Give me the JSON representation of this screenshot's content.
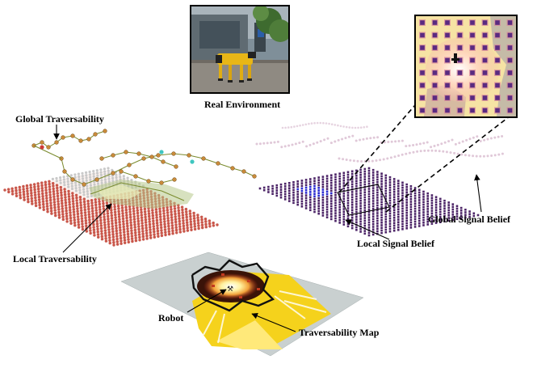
{
  "labels": {
    "real_environment": "Real Environment",
    "global_traversability": "Global Traversability",
    "local_traversability": "Local Traversability",
    "global_signal_belief": "Global Signal Belief",
    "local_signal_belief": "Local Signal Belief",
    "robot": "Robot",
    "traversability_map": "Traversability Map"
  },
  "colors": {
    "local_traversability_nodes": "#c0392b",
    "global_traversability_nodes": "#c9c9c9",
    "traversability_graph": "#7a8b2e",
    "signal_belief_nodes": "#4b2366",
    "signal_belief_highlight": "#2a2ad0",
    "global_signal_trail": "#e0c8d8",
    "map_background": "#c9d0d0",
    "map_free_space": "#f5d21c",
    "map_obstacle": "#111111",
    "inset_background": "#f6e3a4",
    "inset_cell": "#5a2a80"
  },
  "icons": {
    "robot": "quadruped-robot-icon",
    "photo": "real-environment-photo",
    "inset": "signal-belief-zoom-inset"
  }
}
